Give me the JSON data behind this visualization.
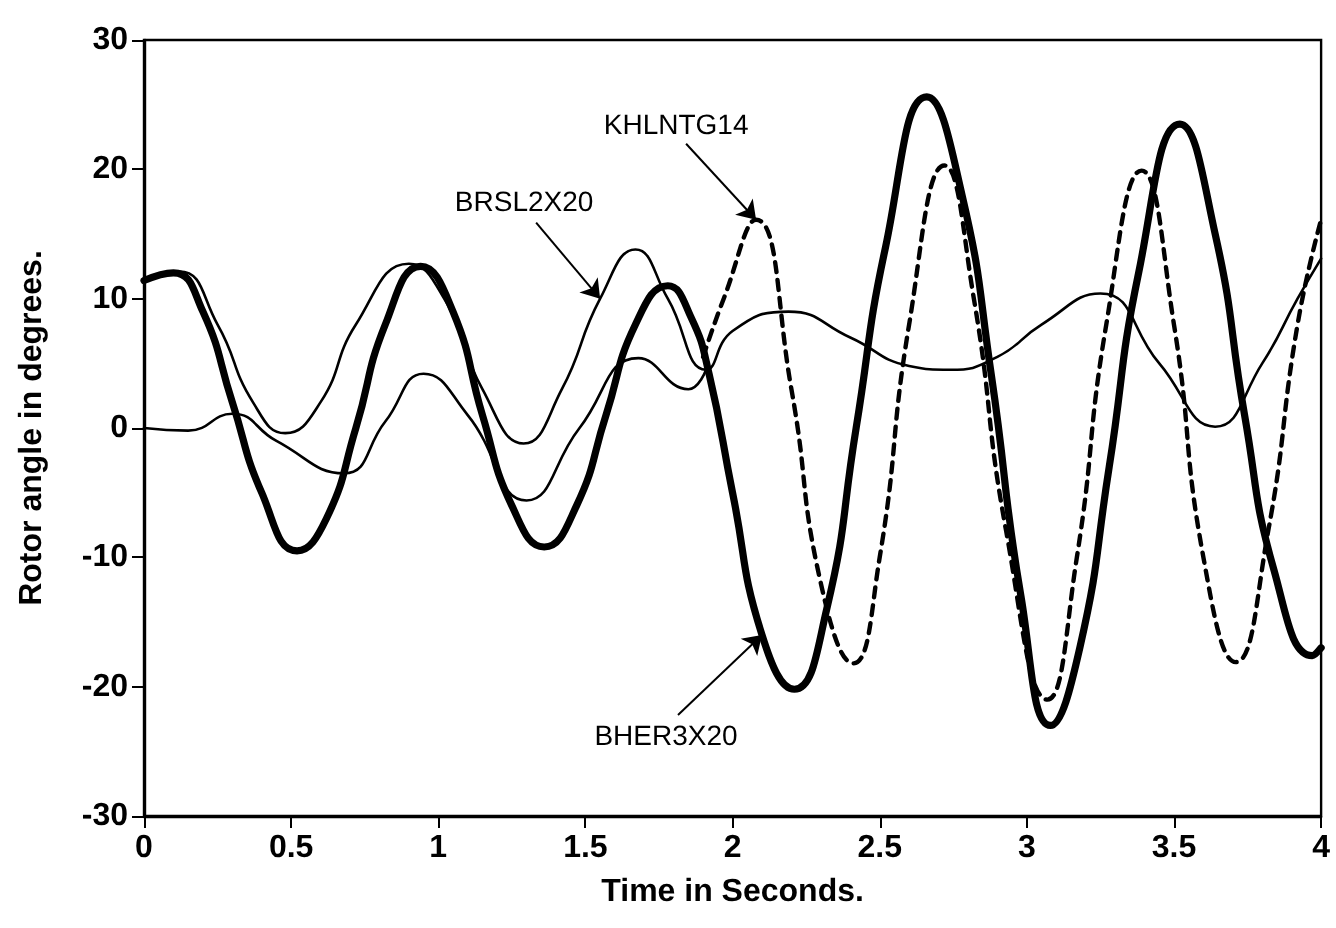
{
  "chart_data": {
    "type": "line",
    "xlabel": "Time in Seconds.",
    "ylabel": "Rotor angle in degrees.",
    "xlim": [
      0,
      4
    ],
    "xticks": [
      0,
      0.5,
      1,
      1.5,
      2,
      2.5,
      3,
      3.5,
      4
    ],
    "ylim": [
      -30,
      30
    ],
    "yticks": [
      -30,
      -20,
      -10,
      0,
      10,
      20,
      30
    ],
    "grid": false,
    "legend": false,
    "marker": "none",
    "series": [
      {
        "name": "BRSL2X20",
        "color": "#000000",
        "line_style": "solid",
        "x": [
          0,
          0.12,
          0.25,
          0.37,
          0.48,
          0.6,
          0.72,
          0.9,
          1.02,
          1.15,
          1.29,
          1.42,
          1.55,
          1.67,
          1.78,
          1.91,
          2.0,
          2.19,
          2.4,
          2.6,
          2.74,
          2.9,
          3.05,
          3.25,
          3.45,
          3.64,
          3.8,
          3.92,
          4.0
        ],
        "values": [
          11.4,
          12.1,
          8,
          2,
          -0.4,
          2,
          8,
          12.7,
          10,
          3,
          -1.2,
          3,
          10,
          13.8,
          10,
          4.5,
          7.5,
          9.0,
          7,
          4.8,
          4.5,
          5.5,
          8,
          10.4,
          5,
          0.1,
          5,
          10,
          13.1
        ]
      },
      {
        "name": "KHLNTG14",
        "color": "#000000",
        "line_style": "dashed",
        "x": [
          1.9,
          1.97,
          2.08,
          2.2,
          2.3,
          2.41,
          2.5,
          2.6,
          2.72,
          2.82,
          2.93,
          3.07,
          3.17,
          3.27,
          3.39,
          3.5,
          3.6,
          3.71,
          3.82,
          3.92,
          4.0
        ],
        "values": [
          5.5,
          10,
          16.1,
          3,
          -12,
          -18.2,
          -10,
          8,
          20.3,
          10,
          -8,
          -21,
          -10,
          8,
          19.9,
          8,
          -10,
          -18.1,
          -8,
          8,
          16.1
        ]
      },
      {
        "name": "BHER3X20",
        "color": "#000000",
        "line_style": "solid",
        "x": [
          0,
          0.1,
          0.2,
          0.3,
          0.4,
          0.52,
          0.62,
          0.72,
          0.82,
          0.94,
          1.05,
          1.15,
          1.25,
          1.36,
          1.47,
          1.57,
          1.67,
          1.78,
          1.86,
          1.92,
          2.0,
          2.1,
          2.21,
          2.32,
          2.42,
          2.52,
          2.66,
          2.78,
          2.88,
          2.98,
          3.08,
          3.18,
          3.28,
          3.38,
          3.52,
          3.64,
          3.74,
          3.84,
          3.97,
          4.0
        ],
        "values": [
          11.4,
          12.0,
          9,
          2,
          -5,
          -9.5,
          -7,
          0,
          8,
          12.5,
          9,
          1,
          -6,
          -9.2,
          -6,
          1,
          8,
          11,
          8.5,
          4.2,
          -5,
          -16,
          -20.2,
          -14,
          0,
          14,
          25.6,
          18,
          4,
          -13,
          -23,
          -17,
          -3,
          12,
          23.5,
          15,
          1,
          -11,
          -17.6,
          -17
        ]
      },
      {
        "color": "#000000",
        "line_style": "solid",
        "x": [
          0,
          0.15,
          0.3,
          0.45,
          0.68,
          0.82,
          0.95,
          1.1,
          1.3,
          1.48,
          1.68,
          1.85,
          1.91
        ],
        "values": [
          0,
          -0.2,
          1.1,
          -1,
          -3.5,
          0.5,
          4.2,
          1,
          -5.6,
          0,
          5.4,
          3.0,
          4.5
        ]
      }
    ]
  }
}
